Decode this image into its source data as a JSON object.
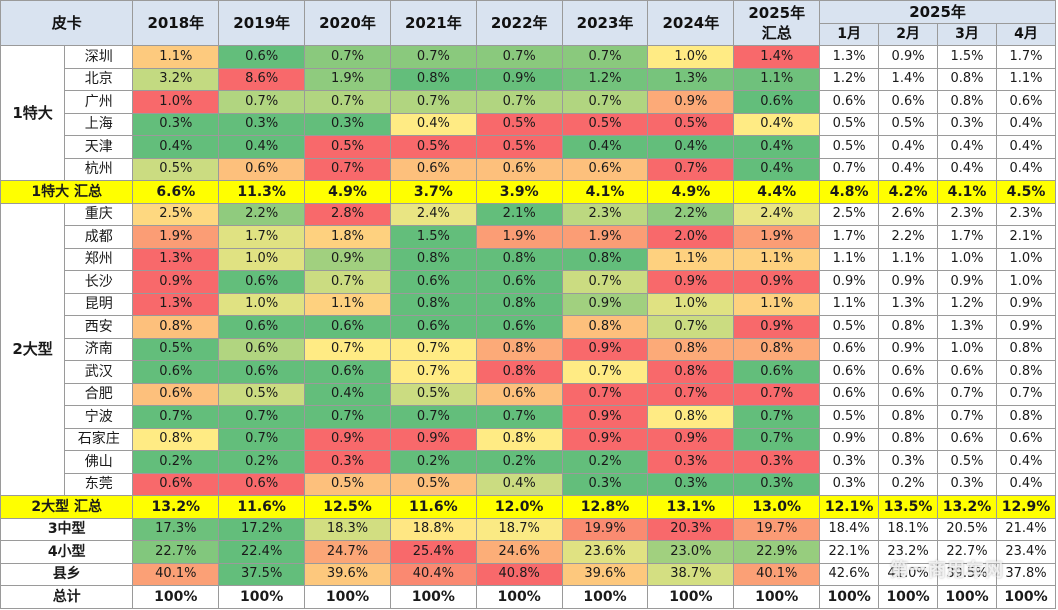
{
  "header": {
    "corner": "皮卡",
    "years": [
      "2018年",
      "2019年",
      "2020年",
      "2021年",
      "2022年",
      "2023年",
      "2024年",
      "2025年\n汇总"
    ],
    "months_group": "2025年",
    "months": [
      "1月",
      "2月",
      "3月",
      "4月"
    ]
  },
  "groups": [
    {
      "label": "1特大",
      "rows": [
        {
          "city": "深圳",
          "years": [
            "1.1%",
            "0.6%",
            "0.7%",
            "0.7%",
            "0.7%",
            "0.7%",
            "1.0%",
            "1.4%"
          ],
          "months": [
            "1.3%",
            "0.9%",
            "1.5%",
            "1.7%"
          ]
        },
        {
          "city": "北京",
          "years": [
            "3.2%",
            "8.6%",
            "1.9%",
            "0.8%",
            "0.9%",
            "1.2%",
            "1.3%",
            "1.1%"
          ],
          "months": [
            "1.2%",
            "1.4%",
            "0.8%",
            "1.1%"
          ]
        },
        {
          "city": "广州",
          "years": [
            "1.0%",
            "0.7%",
            "0.7%",
            "0.7%",
            "0.7%",
            "0.7%",
            "0.9%",
            "0.6%"
          ],
          "months": [
            "0.6%",
            "0.6%",
            "0.8%",
            "0.6%"
          ]
        },
        {
          "city": "上海",
          "years": [
            "0.3%",
            "0.3%",
            "0.3%",
            "0.4%",
            "0.5%",
            "0.5%",
            "0.5%",
            "0.4%"
          ],
          "months": [
            "0.5%",
            "0.5%",
            "0.3%",
            "0.4%"
          ]
        },
        {
          "city": "天津",
          "years": [
            "0.4%",
            "0.4%",
            "0.5%",
            "0.5%",
            "0.5%",
            "0.4%",
            "0.4%",
            "0.4%"
          ],
          "months": [
            "0.5%",
            "0.4%",
            "0.4%",
            "0.4%"
          ]
        },
        {
          "city": "杭州",
          "years": [
            "0.5%",
            "0.6%",
            "0.7%",
            "0.6%",
            "0.6%",
            "0.6%",
            "0.7%",
            "0.4%"
          ],
          "months": [
            "0.7%",
            "0.4%",
            "0.4%",
            "0.4%"
          ]
        }
      ],
      "summary": {
        "label": "1特大 汇总",
        "years": [
          "6.6%",
          "11.3%",
          "4.9%",
          "3.7%",
          "3.9%",
          "4.1%",
          "4.9%",
          "4.4%"
        ],
        "months": [
          "4.8%",
          "4.2%",
          "4.1%",
          "4.5%"
        ]
      }
    },
    {
      "label": "2大型",
      "rows": [
        {
          "city": "重庆",
          "years": [
            "2.5%",
            "2.2%",
            "2.8%",
            "2.4%",
            "2.1%",
            "2.3%",
            "2.2%",
            "2.4%"
          ],
          "months": [
            "2.5%",
            "2.6%",
            "2.3%",
            "2.3%"
          ]
        },
        {
          "city": "成都",
          "years": [
            "1.9%",
            "1.7%",
            "1.8%",
            "1.5%",
            "1.9%",
            "1.9%",
            "2.0%",
            "1.9%"
          ],
          "months": [
            "1.7%",
            "2.2%",
            "1.7%",
            "2.1%"
          ]
        },
        {
          "city": "郑州",
          "years": [
            "1.3%",
            "1.0%",
            "0.9%",
            "0.8%",
            "0.8%",
            "0.8%",
            "1.1%",
            "1.1%"
          ],
          "months": [
            "1.1%",
            "1.1%",
            "1.0%",
            "1.0%"
          ]
        },
        {
          "city": "长沙",
          "years": [
            "0.9%",
            "0.6%",
            "0.7%",
            "0.6%",
            "0.6%",
            "0.7%",
            "0.9%",
            "0.9%"
          ],
          "months": [
            "0.9%",
            "0.9%",
            "0.9%",
            "1.0%"
          ]
        },
        {
          "city": "昆明",
          "years": [
            "1.3%",
            "1.0%",
            "1.1%",
            "0.8%",
            "0.8%",
            "0.9%",
            "1.0%",
            "1.1%"
          ],
          "months": [
            "1.1%",
            "1.3%",
            "1.2%",
            "0.9%"
          ]
        },
        {
          "city": "西安",
          "years": [
            "0.8%",
            "0.6%",
            "0.6%",
            "0.6%",
            "0.6%",
            "0.8%",
            "0.7%",
            "0.9%"
          ],
          "months": [
            "0.5%",
            "0.8%",
            "1.3%",
            "0.9%"
          ]
        },
        {
          "city": "济南",
          "years": [
            "0.5%",
            "0.6%",
            "0.7%",
            "0.7%",
            "0.8%",
            "0.9%",
            "0.8%",
            "0.8%"
          ],
          "months": [
            "0.6%",
            "0.9%",
            "1.0%",
            "0.8%"
          ]
        },
        {
          "city": "武汉",
          "years": [
            "0.6%",
            "0.6%",
            "0.6%",
            "0.7%",
            "0.8%",
            "0.7%",
            "0.8%",
            "0.6%"
          ],
          "months": [
            "0.6%",
            "0.6%",
            "0.6%",
            "0.8%"
          ]
        },
        {
          "city": "合肥",
          "years": [
            "0.6%",
            "0.5%",
            "0.4%",
            "0.5%",
            "0.6%",
            "0.7%",
            "0.7%",
            "0.7%"
          ],
          "months": [
            "0.6%",
            "0.6%",
            "0.7%",
            "0.7%"
          ]
        },
        {
          "city": "宁波",
          "years": [
            "0.7%",
            "0.7%",
            "0.7%",
            "0.7%",
            "0.7%",
            "0.9%",
            "0.8%",
            "0.7%"
          ],
          "months": [
            "0.5%",
            "0.8%",
            "0.7%",
            "0.8%"
          ]
        },
        {
          "city": "石家庄",
          "years": [
            "0.8%",
            "0.7%",
            "0.9%",
            "0.9%",
            "0.8%",
            "0.9%",
            "0.9%",
            "0.7%"
          ],
          "months": [
            "0.9%",
            "0.8%",
            "0.6%",
            "0.6%"
          ]
        },
        {
          "city": "佛山",
          "years": [
            "0.2%",
            "0.2%",
            "0.3%",
            "0.2%",
            "0.2%",
            "0.2%",
            "0.3%",
            "0.3%"
          ],
          "months": [
            "0.3%",
            "0.3%",
            "0.5%",
            "0.4%"
          ]
        },
        {
          "city": "东莞",
          "years": [
            "0.6%",
            "0.6%",
            "0.5%",
            "0.5%",
            "0.4%",
            "0.3%",
            "0.3%",
            "0.3%"
          ],
          "months": [
            "0.3%",
            "0.2%",
            "0.3%",
            "0.4%"
          ]
        }
      ],
      "summary": {
        "label": "2大型 汇总",
        "years": [
          "13.2%",
          "11.6%",
          "12.5%",
          "11.6%",
          "12.0%",
          "12.8%",
          "13.1%",
          "13.0%"
        ],
        "months": [
          "12.1%",
          "13.5%",
          "13.2%",
          "12.9%"
        ]
      }
    }
  ],
  "categories": [
    {
      "label": "3中型",
      "years": [
        "17.3%",
        "17.2%",
        "18.3%",
        "18.8%",
        "18.7%",
        "19.9%",
        "20.3%",
        "19.7%"
      ],
      "months": [
        "18.4%",
        "18.1%",
        "20.5%",
        "21.4%"
      ]
    },
    {
      "label": "4小型",
      "years": [
        "22.7%",
        "22.4%",
        "24.7%",
        "25.4%",
        "24.6%",
        "23.6%",
        "23.0%",
        "22.9%"
      ],
      "months": [
        "22.1%",
        "23.2%",
        "22.7%",
        "23.4%"
      ]
    },
    {
      "label": "县乡",
      "years": [
        "40.1%",
        "37.5%",
        "39.6%",
        "40.4%",
        "40.8%",
        "39.6%",
        "38.7%",
        "40.1%"
      ],
      "months": [
        "42.6%",
        "41.0%",
        "39.5%",
        "37.8%"
      ]
    }
  ],
  "total": {
    "label": "总计",
    "years": [
      "100%",
      "100%",
      "100%",
      "100%",
      "100%",
      "100%",
      "100%",
      "100%"
    ],
    "months": [
      "100%",
      "100%",
      "100%",
      "100%"
    ]
  },
  "colors": {
    "header_bg": "#d9e3f0",
    "summary_bg": "#ffff00",
    "scale_low": "#63be7b",
    "scale_mid": "#ffeb84",
    "scale_high": "#f8696b",
    "grid": "#9a9a9a"
  }
}
